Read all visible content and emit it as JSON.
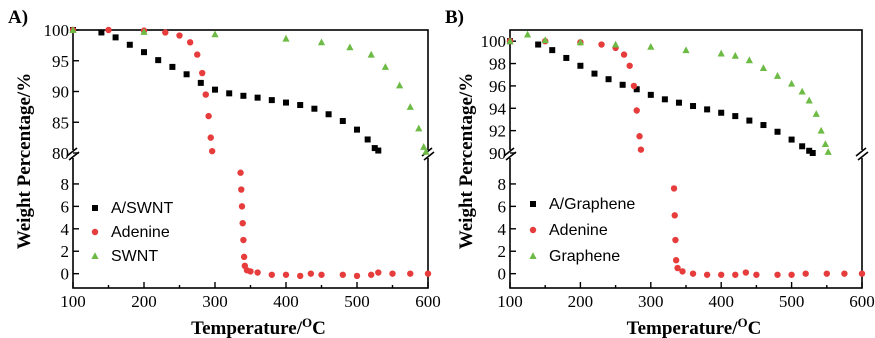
{
  "chart_data": [
    {
      "type": "scatter",
      "panel_label": "A)",
      "xlabel": "Temperature/",
      "xlabel_sup": "O",
      "xlabel_unit": "C",
      "ylabel": "Weight Percentage/%",
      "xlim": [
        100,
        600
      ],
      "x_ticks": [
        "100",
        "200",
        "300",
        "400",
        "500",
        "600"
      ],
      "broken_y_axis": true,
      "upper_ylim": [
        80,
        100
      ],
      "upper_y_ticks": [
        "80",
        "85",
        "90",
        "95",
        "100"
      ],
      "lower_ylim": [
        -1,
        10
      ],
      "lower_y_ticks": [
        "0",
        "2",
        "4",
        "6",
        "8"
      ],
      "legend_position": "lower-left",
      "series": [
        {
          "name": "A/SWNT",
          "color": "#000000",
          "marker": "square",
          "points": [
            [
              100,
              100
            ],
            [
              140,
              99.6
            ],
            [
              160,
              98.8
            ],
            [
              180,
              97.6
            ],
            [
              200,
              96.4
            ],
            [
              220,
              95.1
            ],
            [
              240,
              94.0
            ],
            [
              260,
              92.8
            ],
            [
              280,
              91.4
            ],
            [
              300,
              90.3
            ],
            [
              320,
              89.7
            ],
            [
              340,
              89.3
            ],
            [
              360,
              89.0
            ],
            [
              380,
              88.6
            ],
            [
              400,
              88.2
            ],
            [
              420,
              87.8
            ],
            [
              440,
              87.2
            ],
            [
              460,
              86.3
            ],
            [
              480,
              85.2
            ],
            [
              500,
              83.8
            ],
            [
              515,
              82.2
            ],
            [
              525,
              80.8
            ],
            [
              530,
              80.4
            ]
          ]
        },
        {
          "name": "Adenine",
          "color": "#e63c3c",
          "marker": "circle",
          "points": [
            [
              100,
              100
            ],
            [
              150,
              100
            ],
            [
              200,
              99.9
            ],
            [
              230,
              99.6
            ],
            [
              250,
              99.1
            ],
            [
              265,
              98.0
            ],
            [
              275,
              96.0
            ],
            [
              282,
              93.0
            ],
            [
              287,
              89.5
            ],
            [
              291,
              86.0
            ],
            [
              294,
              82.5
            ],
            [
              296,
              80.3
            ],
            [
              336,
              9.0
            ],
            [
              337,
              7.5
            ],
            [
              338,
              6.0
            ],
            [
              339,
              4.5
            ],
            [
              340,
              3.0
            ],
            [
              341,
              1.5
            ],
            [
              342,
              0.7
            ],
            [
              345,
              0.3
            ],
            [
              350,
              0.2
            ],
            [
              360,
              0.1
            ],
            [
              380,
              -0.1
            ],
            [
              400,
              -0.1
            ],
            [
              420,
              -0.2
            ],
            [
              435,
              0.0
            ],
            [
              450,
              -0.1
            ],
            [
              480,
              -0.1
            ],
            [
              500,
              -0.2
            ],
            [
              520,
              -0.1
            ],
            [
              530,
              0.1
            ],
            [
              550,
              0.0
            ],
            [
              575,
              0.0
            ],
            [
              600,
              0.0
            ]
          ]
        },
        {
          "name": "SWNT",
          "color": "#6dbb45",
          "marker": "triangle",
          "points": [
            [
              100,
              100
            ],
            [
              200,
              99.7
            ],
            [
              300,
              99.3
            ],
            [
              400,
              98.6
            ],
            [
              450,
              98.0
            ],
            [
              490,
              97.2
            ],
            [
              520,
              96.0
            ],
            [
              540,
              94.0
            ],
            [
              560,
              91.0
            ],
            [
              575,
              87.5
            ],
            [
              587,
              84.0
            ],
            [
              594,
              81.0
            ],
            [
              597,
              80.2
            ]
          ]
        }
      ]
    },
    {
      "type": "scatter",
      "panel_label": "B)",
      "xlabel": "Temperature/",
      "xlabel_sup": "O",
      "xlabel_unit": "C",
      "ylabel": "Weight Percentage/%",
      "xlim": [
        100,
        600
      ],
      "x_ticks": [
        "100",
        "200",
        "300",
        "400",
        "500",
        "600"
      ],
      "broken_y_axis": true,
      "upper_ylim": [
        90,
        101
      ],
      "upper_y_ticks": [
        "90",
        "92",
        "94",
        "96",
        "98",
        "100"
      ],
      "lower_ylim": [
        -1,
        10
      ],
      "lower_y_ticks": [
        "0",
        "2",
        "4",
        "6",
        "8"
      ],
      "legend_position": "lower-left",
      "series": [
        {
          "name": "A/Graphene",
          "color": "#000000",
          "marker": "square",
          "points": [
            [
              100,
              100
            ],
            [
              140,
              99.7
            ],
            [
              160,
              99.2
            ],
            [
              180,
              98.5
            ],
            [
              200,
              97.8
            ],
            [
              220,
              97.1
            ],
            [
              240,
              96.6
            ],
            [
              260,
              96.1
            ],
            [
              280,
              95.7
            ],
            [
              300,
              95.2
            ],
            [
              320,
              94.8
            ],
            [
              340,
              94.5
            ],
            [
              360,
              94.2
            ],
            [
              380,
              93.9
            ],
            [
              400,
              93.6
            ],
            [
              420,
              93.3
            ],
            [
              440,
              92.9
            ],
            [
              460,
              92.5
            ],
            [
              480,
              91.9
            ],
            [
              500,
              91.2
            ],
            [
              515,
              90.6
            ],
            [
              525,
              90.2
            ],
            [
              530,
              90.0
            ]
          ]
        },
        {
          "name": "Adenine",
          "color": "#e63c3c",
          "marker": "circle",
          "points": [
            [
              100,
              100
            ],
            [
              150,
              100
            ],
            [
              200,
              99.9
            ],
            [
              230,
              99.7
            ],
            [
              250,
              99.4
            ],
            [
              262,
              98.8
            ],
            [
              270,
              97.8
            ],
            [
              276,
              96.0
            ],
            [
              280,
              93.8
            ],
            [
              284,
              91.5
            ],
            [
              286,
              90.3
            ],
            [
              333,
              7.6
            ],
            [
              334,
              5.2
            ],
            [
              335,
              3.0
            ],
            [
              336,
              1.2
            ],
            [
              338,
              0.5
            ],
            [
              345,
              0.2
            ],
            [
              360,
              0.0
            ],
            [
              380,
              -0.1
            ],
            [
              400,
              -0.1
            ],
            [
              420,
              -0.1
            ],
            [
              435,
              0.1
            ],
            [
              450,
              -0.1
            ],
            [
              480,
              -0.1
            ],
            [
              500,
              -0.1
            ],
            [
              520,
              0.0
            ],
            [
              550,
              0.0
            ],
            [
              575,
              0.0
            ],
            [
              600,
              0.0
            ]
          ]
        },
        {
          "name": "Graphene",
          "color": "#6dbb45",
          "marker": "triangle",
          "points": [
            [
              100,
              100
            ],
            [
              125,
              100.6
            ],
            [
              150,
              100.1
            ],
            [
              200,
              99.9
            ],
            [
              250,
              99.7
            ],
            [
              300,
              99.5
            ],
            [
              350,
              99.2
            ],
            [
              400,
              98.9
            ],
            [
              420,
              98.7
            ],
            [
              440,
              98.3
            ],
            [
              460,
              97.6
            ],
            [
              480,
              96.9
            ],
            [
              500,
              96.2
            ],
            [
              515,
              95.5
            ],
            [
              525,
              94.7
            ],
            [
              535,
              93.5
            ],
            [
              542,
              92.0
            ],
            [
              548,
              90.8
            ],
            [
              552,
              90.1
            ]
          ]
        }
      ]
    }
  ]
}
